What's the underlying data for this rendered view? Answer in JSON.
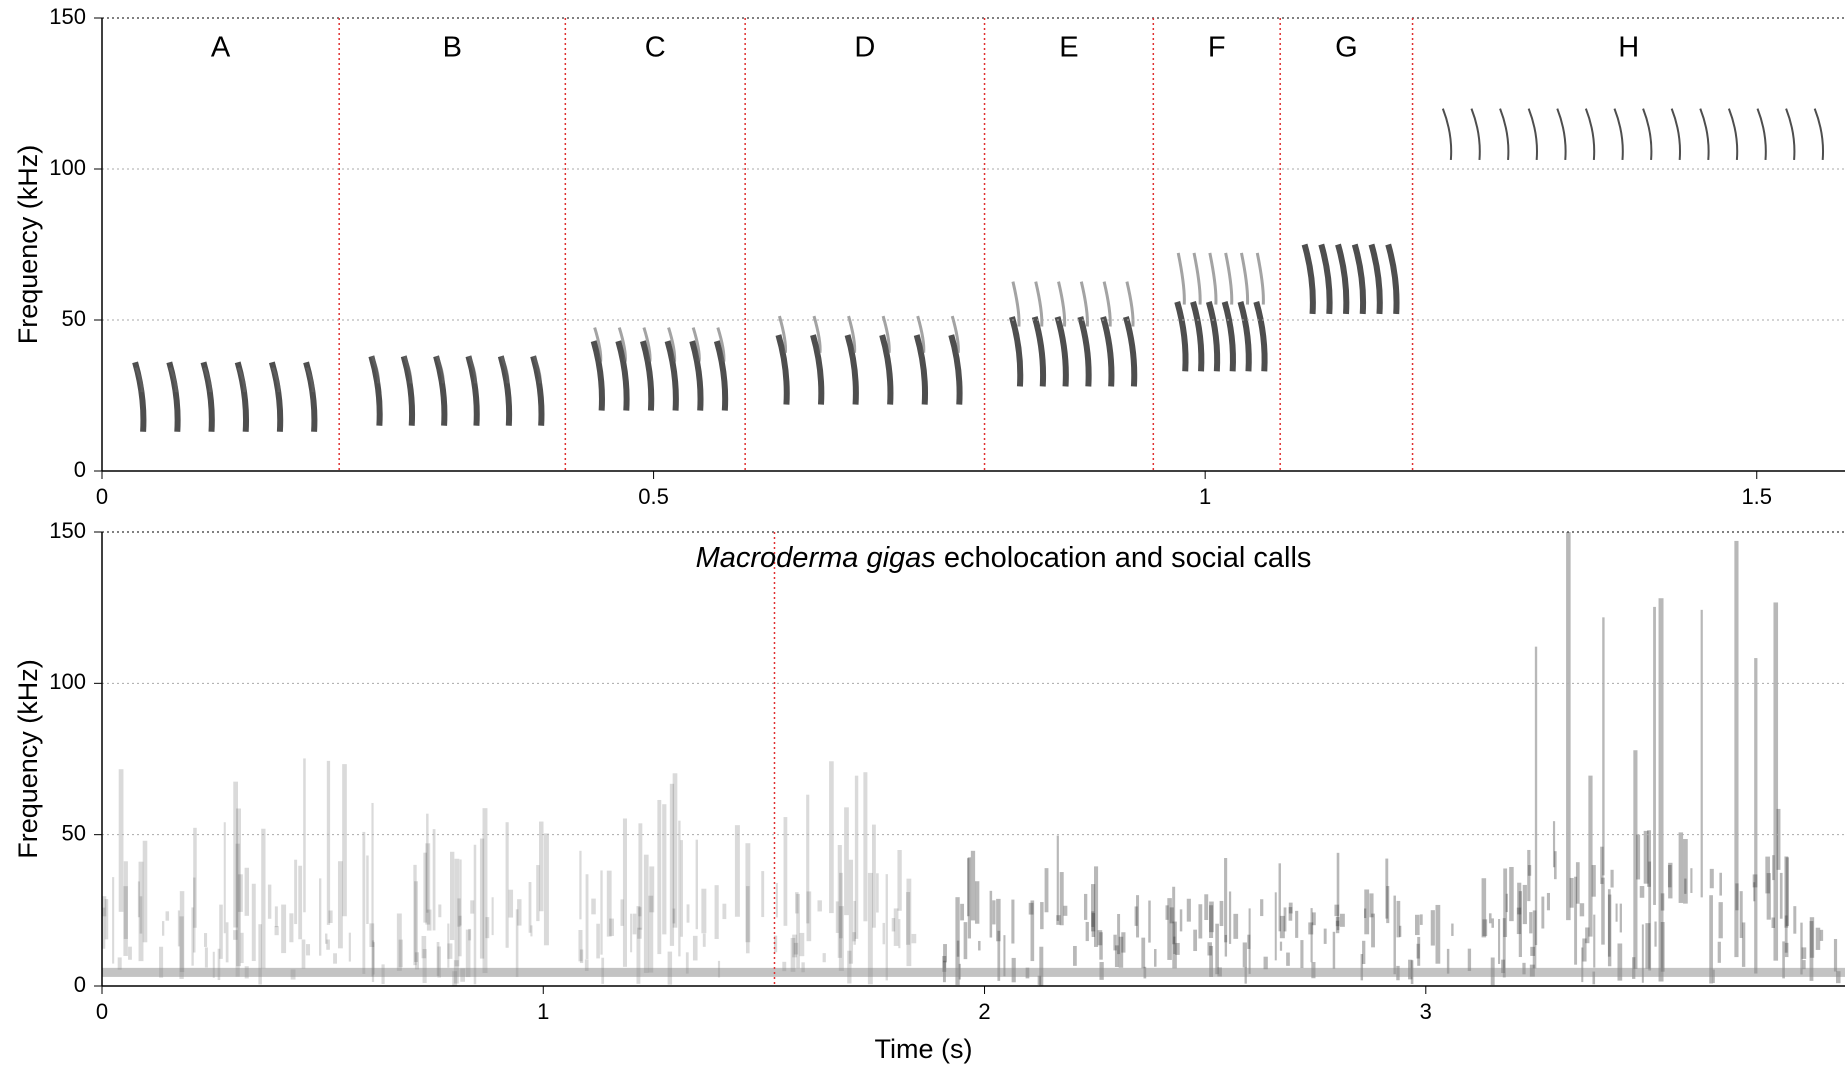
{
  "chart_data": [
    {
      "type": "spectrogram",
      "ylabel": "Frequency (kHz)",
      "xlim": [
        0,
        1.58
      ],
      "xticks": [
        0,
        0.5,
        1,
        1.5
      ],
      "ylim": [
        0,
        150
      ],
      "yticks": [
        0,
        50,
        100,
        150
      ],
      "grid": true,
      "boundaries": [
        0.215,
        0.42,
        0.583,
        0.8,
        0.953,
        1.068,
        1.188
      ],
      "boundary_color": "#e03030",
      "sections": [
        "A",
        "B",
        "C",
        "D",
        "E",
        "F",
        "G",
        "H"
      ]
    },
    {
      "type": "spectrogram",
      "species": "Macroderma gigas",
      "title": "echolocation and social calls",
      "ylabel": "Frequency (kHz)",
      "xlabel": "Time (s)",
      "xlim": [
        0,
        3.95
      ],
      "xticks": [
        0,
        1,
        2,
        3
      ],
      "ylim": [
        0,
        150
      ],
      "yticks": [
        0,
        50,
        100,
        150
      ],
      "grid": true,
      "boundaries": [
        1.524
      ],
      "boundary_color": "#e03030"
    }
  ]
}
